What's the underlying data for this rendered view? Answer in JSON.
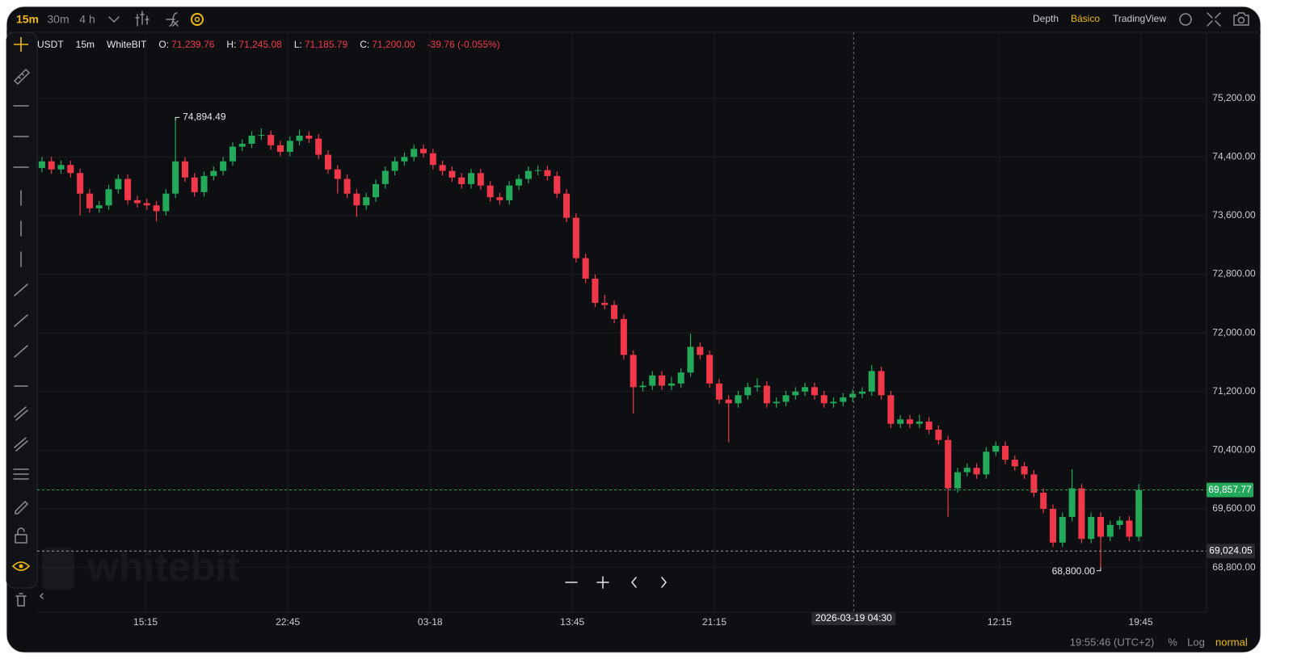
{
  "topbar": {
    "intervals": [
      "15m",
      "30m",
      "4 h"
    ],
    "views": [
      "Depth",
      "Básico",
      "TradingView"
    ]
  },
  "legend": {
    "pair": "USDT",
    "interval": "15m",
    "exchange": "WhiteBIT",
    "items": [
      {
        "key": "O:",
        "value": "71,239.76"
      },
      {
        "key": "H:",
        "value": "71,245.08"
      },
      {
        "key": "L:",
        "value": "71,185.79"
      },
      {
        "key": "C:",
        "value": "71,200.00"
      }
    ],
    "change": "-39.76 (-0.055%)"
  },
  "watermark": "whitebit",
  "footer": {
    "clock": "19:55:46 (UTC+2)",
    "percent": "%",
    "log": "Log",
    "mode": "normal"
  },
  "chart_data": {
    "type": "candlestick",
    "up_color": "#23a95a",
    "down_color": "#f0384a",
    "ylim": [
      68190,
      76100
    ],
    "yticks": [
      {
        "value": 68800,
        "label": "68,800.00"
      },
      {
        "value": 69600,
        "label": "69,600.00"
      },
      {
        "value": 70400,
        "label": "70,400.00"
      },
      {
        "value": 71200,
        "label": "71,200.00"
      },
      {
        "value": 72000,
        "label": "72,000.00"
      },
      {
        "value": 72800,
        "label": "72,800.00"
      },
      {
        "value": 73600,
        "label": "73,600.00"
      },
      {
        "value": 74400,
        "label": "74,400.00"
      },
      {
        "value": 75200,
        "label": "75,200.00"
      }
    ],
    "xlim": [
      -0.5,
      122.1
    ],
    "xticks": [
      {
        "value": 10.86,
        "label": "15:15"
      },
      {
        "value": 25.78,
        "label": "22:45"
      },
      {
        "value": 40.7,
        "label": "03-18"
      },
      {
        "value": 55.6,
        "label": "13:45"
      },
      {
        "value": 70.5,
        "label": "21:15"
      },
      {
        "value": 100.4,
        "label": "12:15"
      },
      {
        "value": 115.2,
        "label": "19:45"
      }
    ],
    "grid": true,
    "opens": [
      74250,
      74340,
      74230,
      74290,
      74180,
      73900,
      73700,
      73740,
      73960,
      74100,
      73810,
      73770,
      73740,
      73660,
      73900,
      74340,
      74120,
      73920,
      74140,
      74210,
      74340,
      74540,
      74580,
      74690,
      74700,
      74560,
      74470,
      74620,
      74690,
      74650,
      74430,
      74230,
      74100,
      73900,
      73740,
      73850,
      74030,
      74210,
      74340,
      74400,
      74510,
      74450,
      74290,
      74210,
      74120,
      74030,
      74180,
      74010,
      73850,
      73810,
      74010,
      74100,
      74210,
      74220,
      74140,
      73900,
      73570,
      73020,
      72740,
      72410,
      72380,
      72190,
      71700,
      71260,
      71280,
      71420,
      71280,
      71310,
      71460,
      71810,
      71700,
      71310,
      71090,
      71040,
      71150,
      71260,
      71280,
      71040,
      71060,
      71150,
      71200,
      71260,
      71150,
      71040,
      71060,
      71120,
      71170,
      71200,
      71480,
      71150,
      70760,
      70820,
      70760,
      70790,
      70680,
      70540,
      69880,
      70100,
      70160,
      70070,
      70380,
      70460,
      70270,
      70180,
      70070,
      69820,
      69600,
      69140,
      69490,
      69880,
      69190,
      69490,
      69220,
      69380,
      69440,
      69220
    ],
    "highs": [
      74400,
      74400,
      74350,
      74350,
      74240,
      73960,
      73800,
      74020,
      74160,
      74160,
      73870,
      73830,
      73800,
      73960,
      74894.49,
      74400,
      74180,
      74200,
      74270,
      74400,
      74600,
      74640,
      74750,
      74790,
      74760,
      74620,
      74680,
      74770,
      74750,
      74710,
      74490,
      74290,
      74160,
      73960,
      73910,
      74090,
      74270,
      74400,
      74460,
      74570,
      74570,
      74510,
      74350,
      74270,
      74180,
      74240,
      74240,
      74070,
      73910,
      74070,
      74160,
      74270,
      74280,
      74280,
      74200,
      73960,
      73630,
      73080,
      72800,
      72520,
      72440,
      72250,
      71760,
      71340,
      71480,
      71480,
      71400,
      71520,
      71990,
      71870,
      71760,
      71370,
      71150,
      71210,
      71320,
      71380,
      71340,
      71120,
      71210,
      71260,
      71320,
      71320,
      71210,
      71120,
      71180,
      71230,
      71260,
      71560,
      71540,
      71210,
      70880,
      70880,
      70880,
      70850,
      70740,
      70600,
      70160,
      70220,
      70220,
      70440,
      70520,
      70520,
      70330,
      70240,
      70130,
      69880,
      69660,
      69550,
      70140,
      69940,
      69550,
      69550,
      69440,
      69500,
      69500,
      69940
    ],
    "lows": [
      74190,
      74170,
      74170,
      74120,
      73600,
      73640,
      73640,
      73680,
      73900,
      73750,
      73710,
      73680,
      73520,
      73600,
      73840,
      74060,
      73860,
      73860,
      74080,
      74150,
      74280,
      74480,
      74520,
      74630,
      74500,
      74410,
      74410,
      74560,
      74590,
      74370,
      74170,
      73900,
      73840,
      73580,
      73680,
      73790,
      73970,
      74150,
      74280,
      74340,
      74390,
      74230,
      74150,
      74060,
      73970,
      73970,
      73950,
      73790,
      73750,
      73750,
      73950,
      74040,
      74150,
      74080,
      73840,
      73510,
      72960,
      72680,
      72350,
      72320,
      72130,
      71640,
      70900,
      71200,
      71220,
      71220,
      71220,
      71250,
      71400,
      71640,
      71250,
      71030,
      70510,
      70980,
      71090,
      71200,
      70980,
      70980,
      71000,
      71090,
      71140,
      71090,
      70980,
      70980,
      71000,
      71060,
      71110,
      71140,
      71090,
      70700,
      70700,
      70700,
      70700,
      70620,
      70480,
      69490,
      69820,
      70040,
      70010,
      70010,
      70320,
      70210,
      70120,
      70010,
      69760,
      69540,
      69080,
      69080,
      69430,
      69130,
      69130,
      68800,
      69160,
      69320,
      69160,
      69160
    ],
    "closes": [
      74340,
      74230,
      74290,
      74180,
      73900,
      73700,
      73740,
      73960,
      74100,
      73810,
      73770,
      73740,
      73660,
      73900,
      74340,
      74120,
      73920,
      74140,
      74210,
      74340,
      74540,
      74580,
      74690,
      74700,
      74560,
      74470,
      74620,
      74690,
      74650,
      74430,
      74230,
      74100,
      73900,
      73740,
      73850,
      74030,
      74210,
      74340,
      74400,
      74510,
      74450,
      74290,
      74210,
      74120,
      74030,
      74180,
      74010,
      73850,
      73810,
      74010,
      74100,
      74210,
      74220,
      74140,
      73900,
      73570,
      73020,
      72740,
      72410,
      72380,
      72190,
      71700,
      71260,
      71280,
      71420,
      71280,
      71310,
      71460,
      71810,
      71700,
      71310,
      71090,
      71040,
      71150,
      71260,
      71280,
      71040,
      71060,
      71150,
      71200,
      71260,
      71150,
      71040,
      71060,
      71120,
      71170,
      71200,
      71480,
      71150,
      70760,
      70820,
      70760,
      70790,
      70680,
      70540,
      69880,
      70100,
      70160,
      70070,
      70380,
      70460,
      70270,
      70180,
      70070,
      69820,
      69600,
      69140,
      69490,
      69880,
      69190,
      69490,
      69220,
      69380,
      69440,
      69220,
      69857.77
    ],
    "high_label": "74,894.49",
    "low_label": "68,800.00",
    "last_price": {
      "value": 69857.77,
      "label": "69,857.77"
    },
    "crosshair": {
      "x": 85.1,
      "price": 69024.05,
      "price_label": "69,024.05",
      "time_label": "2026-03-19 04:30"
    }
  }
}
